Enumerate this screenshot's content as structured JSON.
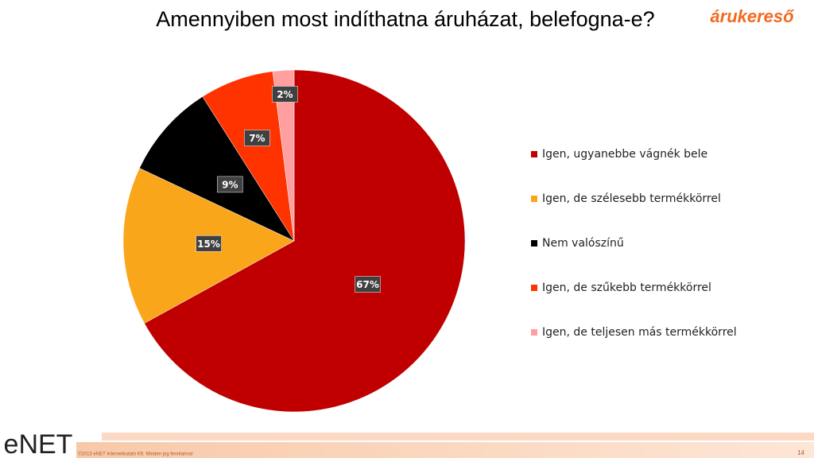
{
  "chart_data": {
    "type": "pie",
    "title": "Amennyiben most indíthatna áruházat, belefogna-e?",
    "categories": [
      "Igen, ugyanebbe vágnék bele",
      "Igen, de szélesebb termékkörrel",
      "Nem valószínű",
      "Igen, de szűkebb termékkörrel",
      "Igen, de teljesen más termékkörrel"
    ],
    "values": [
      67,
      15,
      9,
      7,
      2
    ],
    "value_labels": [
      "67%",
      "15%",
      "9%",
      "7%",
      "2%"
    ],
    "colors": [
      "#c00000",
      "#f9a61b",
      "#000000",
      "#ff3300",
      "#ff9f9f"
    ],
    "legend": "right"
  },
  "slide": {
    "brand": "árukereső",
    "company": "eNET",
    "footer": "©2013 eNET Internetkutató Kft. Minden jog fenntartva!",
    "page_number": "14"
  }
}
